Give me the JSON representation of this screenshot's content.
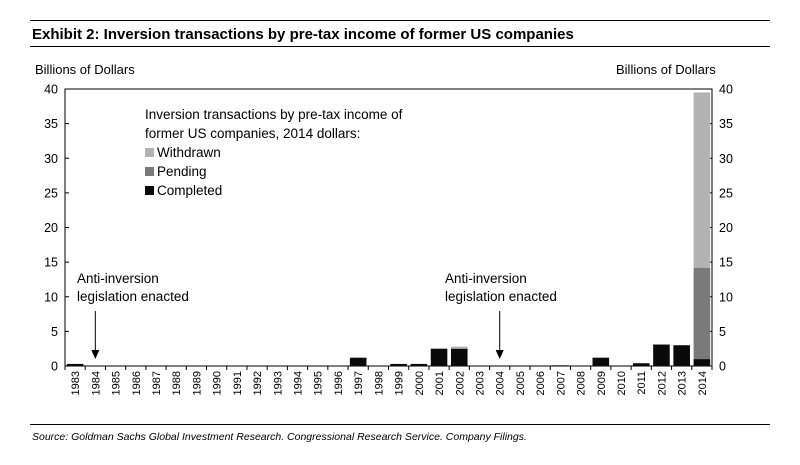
{
  "header": {
    "title": "Exhibit 2: Inversion transactions by pre-tax income of former US companies"
  },
  "footer": {
    "source": "Source: Goldman Sachs Global Investment Research. Congressional Research Service. Company Filings."
  },
  "colors": {
    "completed": "#0a0a0a",
    "pending": "#7a7a7a",
    "withdrawn": "#b3b3b3"
  },
  "chart_data": {
    "type": "bar",
    "stacked": true,
    "title": "Exhibit 2: Inversion transactions by pre-tax income of former US companies",
    "ylabel_left": "Billions of Dollars",
    "ylabel_right": "Billions of Dollars",
    "ylim": [
      0,
      40
    ],
    "yticks": [
      0,
      5,
      10,
      15,
      20,
      25,
      30,
      35,
      40
    ],
    "legend_title": [
      "Inversion transactions by pre-tax income of",
      "former US companies, 2014 dollars:"
    ],
    "legend_position": "top-left",
    "categories": [
      "1983",
      "1984",
      "1985",
      "1986",
      "1987",
      "1988",
      "1989",
      "1990",
      "1991",
      "1992",
      "1993",
      "1994",
      "1995",
      "1996",
      "1997",
      "1998",
      "1999",
      "2000",
      "2001",
      "2002",
      "2003",
      "2004",
      "2005",
      "2006",
      "2007",
      "2008",
      "2009",
      "2010",
      "2011",
      "2012",
      "2013",
      "2014"
    ],
    "series": [
      {
        "name": "Completed",
        "values": [
          0.3,
          0,
          0,
          0,
          0,
          0,
          0,
          0,
          0,
          0,
          0,
          0,
          0,
          0,
          1.2,
          0,
          0.3,
          0.3,
          2.5,
          2.5,
          0,
          0,
          0,
          0,
          0.1,
          0,
          1.2,
          0,
          0.4,
          3.1,
          3.0,
          1.0
        ]
      },
      {
        "name": "Pending",
        "values": [
          0,
          0,
          0,
          0,
          0,
          0,
          0,
          0,
          0,
          0,
          0,
          0,
          0,
          0,
          0,
          0,
          0,
          0,
          0,
          0,
          0,
          0,
          0,
          0,
          0,
          0,
          0,
          0,
          0,
          0,
          0,
          13.2
        ]
      },
      {
        "name": "Withdrawn",
        "values": [
          0,
          0,
          0,
          0,
          0,
          0,
          0,
          0,
          0,
          0,
          0,
          0,
          0,
          0,
          0,
          0,
          0,
          0,
          0,
          0.3,
          0,
          0,
          0,
          0,
          0,
          0,
          0,
          0,
          0,
          0,
          0,
          25.3
        ]
      }
    ],
    "annotations": [
      {
        "lines": [
          "Anti-inversion",
          "legislation enacted"
        ],
        "year": "1984"
      },
      {
        "lines": [
          "Anti-inversion",
          "legislation enacted"
        ],
        "year": "2004"
      }
    ]
  }
}
